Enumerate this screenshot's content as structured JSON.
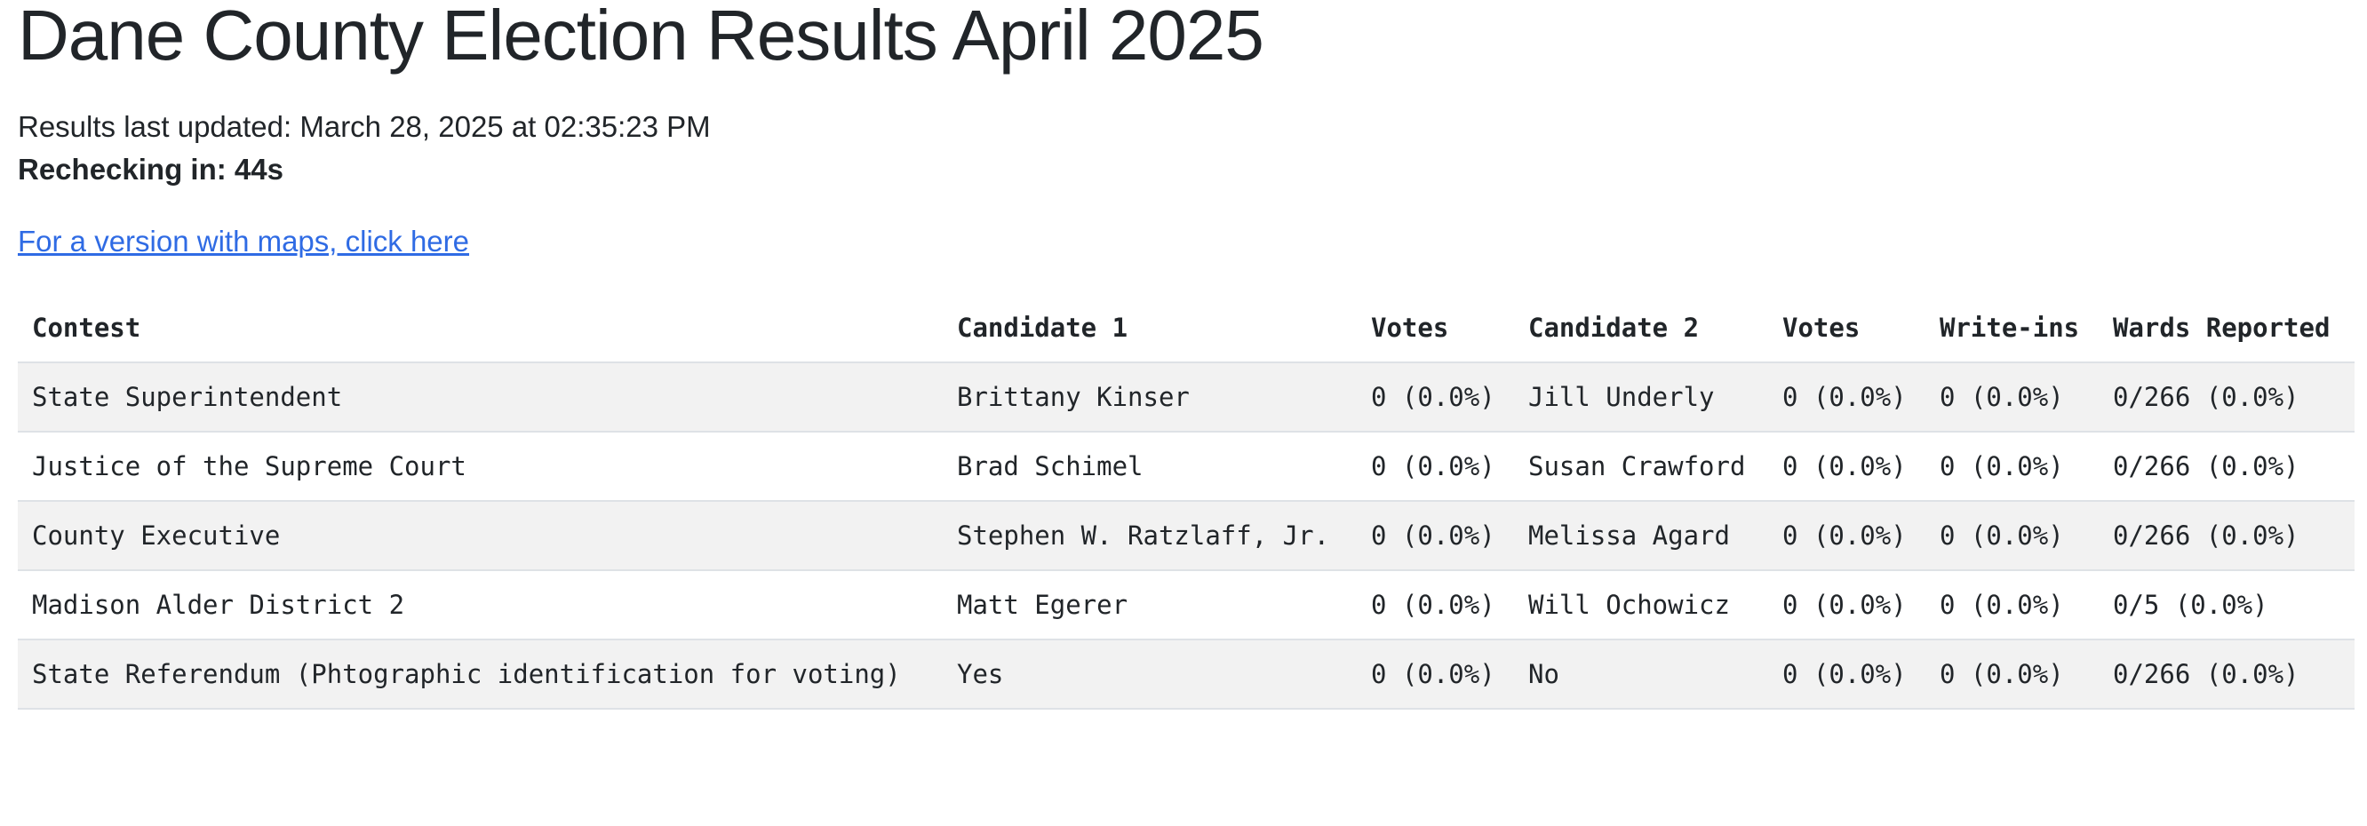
{
  "header": {
    "title": "Dane County Election Results April 2025",
    "last_updated": "Results last updated: March 28, 2025 at 02:35:23 PM",
    "rechecking": "Rechecking in: 44s",
    "maps_link": "For a version with maps, click here"
  },
  "table": {
    "columns": [
      "Contest",
      "Candidate 1",
      "Votes",
      "Candidate 2",
      "Votes",
      "Write-ins",
      "Wards Reported"
    ],
    "rows": [
      {
        "contest": "State Superintendent",
        "candidate_1": "Brittany Kinser",
        "votes_1": "0 (0.0%)",
        "candidate_2": "Jill Underly",
        "votes_2": "0 (0.0%)",
        "write_ins": "0 (0.0%)",
        "wards_reported": "0/266 (0.0%)"
      },
      {
        "contest": "Justice of the Supreme Court",
        "candidate_1": "Brad Schimel",
        "votes_1": "0 (0.0%)",
        "candidate_2": "Susan Crawford",
        "votes_2": "0 (0.0%)",
        "write_ins": "0 (0.0%)",
        "wards_reported": "0/266 (0.0%)"
      },
      {
        "contest": "County Executive",
        "candidate_1": "Stephen W. Ratzlaff, Jr.",
        "votes_1": "0 (0.0%)",
        "candidate_2": "Melissa Agard",
        "votes_2": "0 (0.0%)",
        "write_ins": "0 (0.0%)",
        "wards_reported": "0/266 (0.0%)"
      },
      {
        "contest": "Madison Alder District 2",
        "candidate_1": "Matt Egerer",
        "votes_1": "0 (0.0%)",
        "candidate_2": "Will Ochowicz",
        "votes_2": "0 (0.0%)",
        "write_ins": "0 (0.0%)",
        "wards_reported": "0/5 (0.0%)"
      },
      {
        "contest": "State Referendum (Phtographic identification for voting)",
        "candidate_1": "Yes",
        "votes_1": "0 (0.0%)",
        "candidate_2": "No",
        "votes_2": "0 (0.0%)",
        "write_ins": "0 (0.0%)",
        "wards_reported": "0/266 (0.0%)"
      }
    ]
  },
  "colors": {
    "text": "#212529",
    "link": "#2f6be4",
    "stripe": "#f2f2f2",
    "border": "#dee2e6"
  }
}
